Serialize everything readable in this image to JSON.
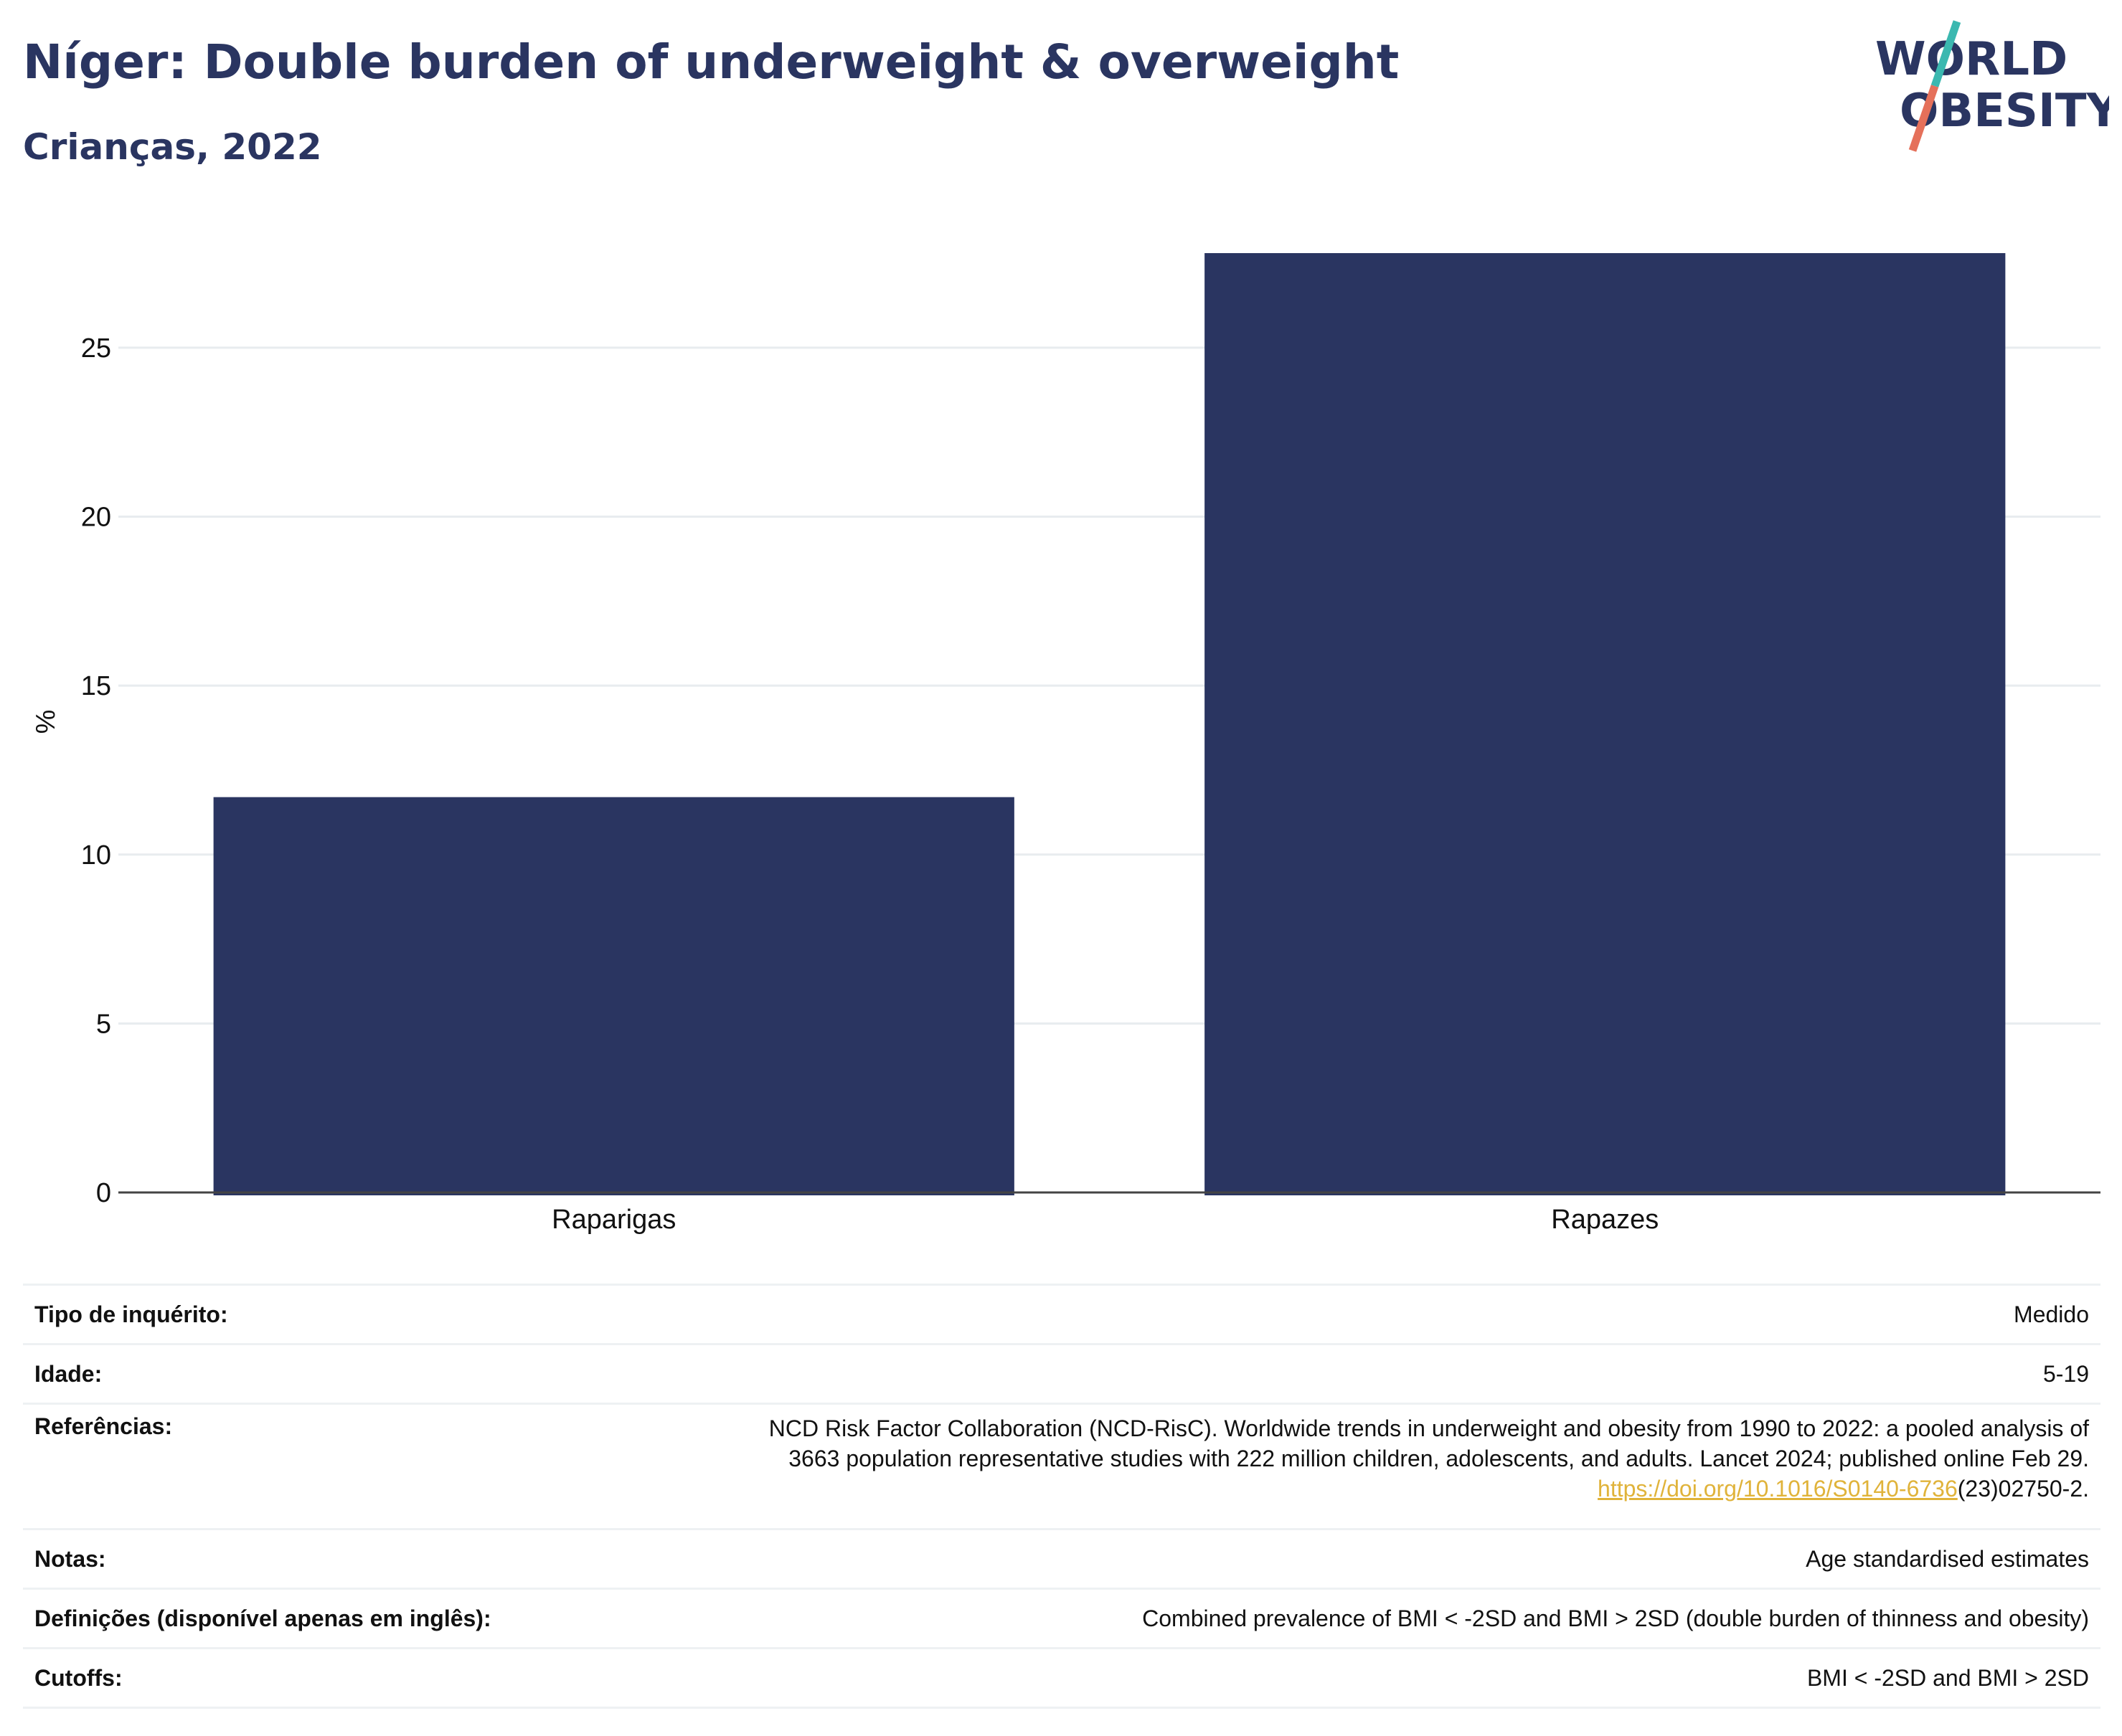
{
  "header": {
    "title": "Níger: Double burden of underweight & overweight",
    "subtitle": "Crianças, 2022"
  },
  "logo": {
    "line1": "WORLD",
    "line2": "OBESITY",
    "text_color": "#2a3561",
    "slash_top_color": "#3bb8b0",
    "slash_bottom_color": "#e5705a"
  },
  "chart_data": {
    "type": "bar",
    "categories": [
      "Raparigas",
      "Rapazes"
    ],
    "values": [
      11.7,
      27.8
    ],
    "title": "",
    "xlabel": "",
    "ylabel": "%",
    "ylim": [
      0,
      28.5
    ],
    "yticks": [
      0,
      5,
      10,
      15,
      20,
      25
    ],
    "grid": true,
    "bar_color": "#2a3561"
  },
  "info": {
    "survey_type": {
      "label": "Tipo de inquérito:",
      "value": "Medido"
    },
    "age": {
      "label": "Idade:",
      "value": "5-19"
    },
    "references": {
      "label": "Referências:",
      "line1": "NCD Risk Factor Collaboration (NCD-RisC). Worldwide trends in underweight and obesity from 1990 to 2022: a pooled analysis of",
      "line2": "3663 population representative studies with 222 million children, adolescents, and adults. Lancet 2024; published online Feb 29.",
      "link": "https://doi.org/10.1016/S0140-6736",
      "link_suffix": "(23)02750-2."
    },
    "notes": {
      "label": "Notas:",
      "value": "Age standardised estimates"
    },
    "definitions": {
      "label": "Definições (disponível apenas em inglês):",
      "value": "Combined prevalence of BMI < -2SD and BMI > 2SD (double burden of thinness and obesity)"
    },
    "cutoffs": {
      "label": "Cutoffs:",
      "value": "BMI < -2SD and BMI > 2SD"
    }
  }
}
